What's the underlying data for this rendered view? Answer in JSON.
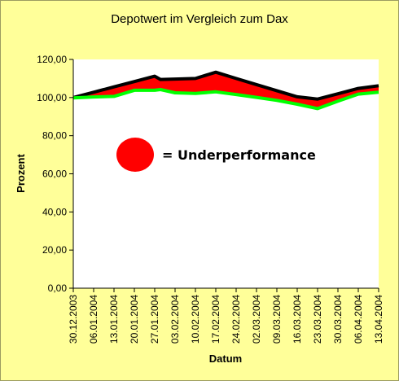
{
  "chart_data": {
    "type": "area",
    "title": "Depotwert im Vergleich zum Dax",
    "xlabel": "Datum",
    "ylabel": "Prozent",
    "ylim": [
      0,
      120
    ],
    "yticks": [
      "0,00",
      "20,00",
      "40,00",
      "60,00",
      "80,00",
      "100,00",
      "120,00"
    ],
    "categories": [
      "30.12.2003",
      "06.01.2004",
      "13.01.2004",
      "20.01.2004",
      "27.01.2004",
      "03.02.2004",
      "10.02.2004",
      "17.02.2004",
      "24.02.2004",
      "02.03.2004",
      "09.03.2004",
      "16.03.2004",
      "23.03.2004",
      "30.03.2004",
      "06.04.2004",
      "13.04.2004"
    ],
    "x": [
      "30.12.2003",
      "06.01.2004",
      "13.01.2004",
      "20.01.2004",
      "27.01.2004",
      "29.01.2004",
      "03.02.2004",
      "10.02.2004",
      "17.02.2004",
      "24.02.2004",
      "02.03.2004",
      "09.03.2004",
      "16.03.2004",
      "23.03.2004",
      "30.03.2004",
      "06.04.2004",
      "13.04.2004"
    ],
    "series": [
      {
        "color": "#000000",
        "values": [
          100.0,
          102.8,
          105.6,
          108.4,
          111.2,
          109.5,
          109.7,
          110.0,
          113.3,
          110.0,
          106.8,
          103.6,
          100.4,
          99.2,
          102.0,
          104.8,
          106.2
        ]
      },
      {
        "color": "#00ff00",
        "values": [
          99.8,
          100.3,
          100.6,
          103.8,
          103.8,
          104.2,
          102.5,
          102.2,
          103.0,
          101.6,
          100.1,
          98.5,
          96.5,
          94.2,
          98.1,
          101.8,
          102.8
        ]
      }
    ],
    "fill_between_color": "#ff0000",
    "legend": {
      "symbol_color": "#ff0000",
      "label": "= Underperformance",
      "position": "middle-left"
    },
    "grid": false
  }
}
